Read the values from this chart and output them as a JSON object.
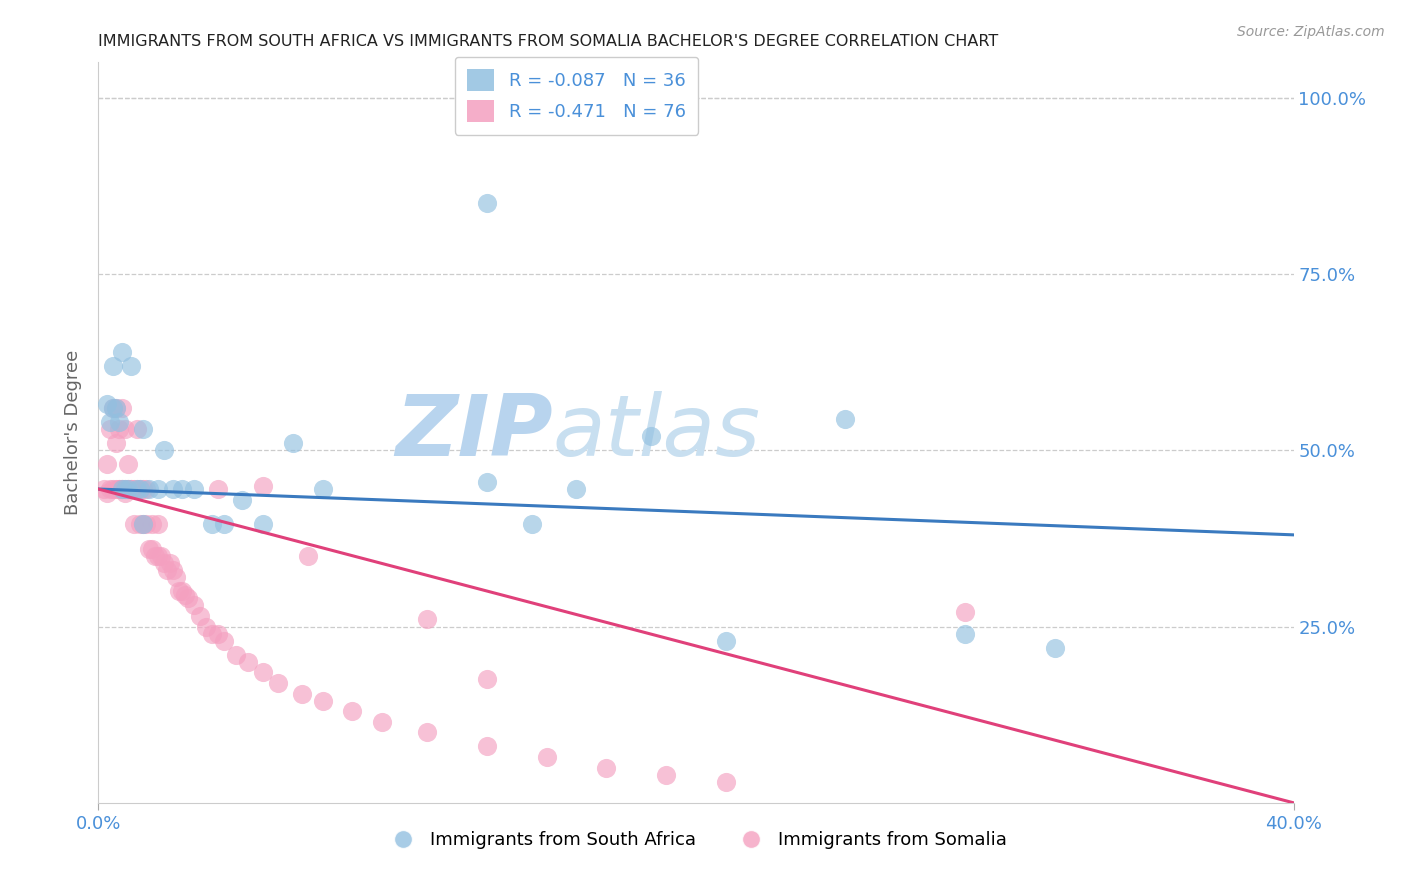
{
  "title": "IMMIGRANTS FROM SOUTH AFRICA VS IMMIGRANTS FROM SOMALIA BACHELOR'S DEGREE CORRELATION CHART",
  "source": "Source: ZipAtlas.com",
  "ylabel": "Bachelor's Degree",
  "right_yticks": [
    "100.0%",
    "75.0%",
    "50.0%",
    "25.0%"
  ],
  "right_ytick_vals": [
    1.0,
    0.75,
    0.5,
    0.25
  ],
  "xlim": [
    0.0,
    0.4
  ],
  "ylim": [
    0.0,
    1.05
  ],
  "legend_r1": "R = -0.087",
  "legend_n1": "N = 36",
  "legend_r2": "R = -0.471",
  "legend_n2": "N = 76",
  "color_blue": "#92c0e0",
  "color_pink": "#f4a0c0",
  "line_blue": "#3a7abf",
  "line_pink": "#e0407a",
  "south_africa_x": [
    0.003,
    0.004,
    0.005,
    0.006,
    0.007,
    0.008,
    0.009,
    0.01,
    0.011,
    0.013,
    0.014,
    0.015,
    0.017,
    0.02,
    0.022,
    0.025,
    0.028,
    0.032,
    0.038,
    0.042,
    0.048,
    0.055,
    0.065,
    0.075,
    0.13,
    0.145,
    0.16,
    0.185,
    0.21,
    0.25,
    0.29,
    0.32,
    0.13,
    0.005,
    0.008,
    0.015
  ],
  "south_africa_y": [
    0.565,
    0.54,
    0.56,
    0.56,
    0.54,
    0.445,
    0.445,
    0.445,
    0.62,
    0.445,
    0.445,
    0.53,
    0.445,
    0.445,
    0.5,
    0.445,
    0.445,
    0.445,
    0.395,
    0.395,
    0.43,
    0.395,
    0.51,
    0.445,
    0.455,
    0.395,
    0.445,
    0.52,
    0.23,
    0.545,
    0.24,
    0.22,
    0.85,
    0.62,
    0.64,
    0.395
  ],
  "somalia_x": [
    0.002,
    0.003,
    0.003,
    0.004,
    0.004,
    0.005,
    0.005,
    0.006,
    0.006,
    0.006,
    0.007,
    0.007,
    0.007,
    0.008,
    0.008,
    0.008,
    0.009,
    0.009,
    0.009,
    0.01,
    0.01,
    0.01,
    0.011,
    0.011,
    0.012,
    0.012,
    0.013,
    0.013,
    0.014,
    0.014,
    0.015,
    0.015,
    0.016,
    0.016,
    0.017,
    0.018,
    0.018,
    0.019,
    0.02,
    0.02,
    0.021,
    0.022,
    0.023,
    0.024,
    0.025,
    0.026,
    0.027,
    0.028,
    0.029,
    0.03,
    0.032,
    0.034,
    0.036,
    0.038,
    0.04,
    0.042,
    0.046,
    0.05,
    0.055,
    0.06,
    0.068,
    0.075,
    0.085,
    0.095,
    0.11,
    0.13,
    0.15,
    0.17,
    0.19,
    0.21,
    0.04,
    0.055,
    0.11,
    0.29,
    0.07,
    0.13
  ],
  "somalia_y": [
    0.445,
    0.48,
    0.44,
    0.445,
    0.53,
    0.445,
    0.56,
    0.445,
    0.56,
    0.51,
    0.445,
    0.53,
    0.445,
    0.445,
    0.445,
    0.56,
    0.44,
    0.445,
    0.53,
    0.445,
    0.445,
    0.48,
    0.445,
    0.445,
    0.445,
    0.395,
    0.445,
    0.53,
    0.395,
    0.445,
    0.395,
    0.445,
    0.395,
    0.445,
    0.36,
    0.36,
    0.395,
    0.35,
    0.395,
    0.35,
    0.35,
    0.34,
    0.33,
    0.34,
    0.33,
    0.32,
    0.3,
    0.3,
    0.295,
    0.29,
    0.28,
    0.265,
    0.25,
    0.24,
    0.24,
    0.23,
    0.21,
    0.2,
    0.185,
    0.17,
    0.155,
    0.145,
    0.13,
    0.115,
    0.1,
    0.08,
    0.065,
    0.05,
    0.04,
    0.03,
    0.445,
    0.45,
    0.26,
    0.27,
    0.35,
    0.175
  ],
  "blue_line_x0": 0.0,
  "blue_line_y0": 0.445,
  "blue_line_x1": 0.4,
  "blue_line_y1": 0.38,
  "pink_line_x0": 0.0,
  "pink_line_y0": 0.445,
  "pink_line_x1": 0.4,
  "pink_line_y1": 0.0
}
